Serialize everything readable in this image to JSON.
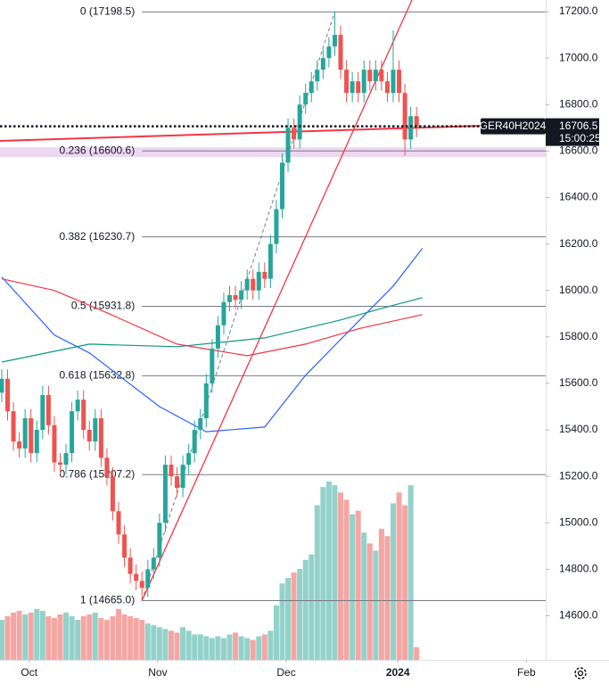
{
  "chart_data": {
    "type": "candlestick",
    "symbol": "GER40H2024",
    "countdown": "15:00:25",
    "open": [
      15560,
      15620,
      15480,
      15350,
      15320,
      15450,
      15300,
      15400,
      15550,
      15420,
      15260,
      15250,
      15300,
      15480,
      15530,
      15400,
      15350,
      15450,
      15280,
      15200,
      15050,
      14950,
      14850,
      14780,
      14750,
      14720,
      14800,
      14850,
      15000,
      15250,
      15200,
      15150,
      15250,
      15300,
      15400,
      15450,
      15600,
      15750,
      15850,
      15950,
      15980,
      15960,
      16000,
      16050,
      16000,
      16080,
      16050,
      16200,
      16350,
      16550,
      16700,
      16650,
      16800,
      16850,
      16900,
      16950,
      17000,
      17050,
      17100,
      16950,
      16850,
      16900,
      16850,
      16950,
      16900,
      16950,
      16900,
      16850,
      16950,
      16850,
      16650,
      16750
    ],
    "high": [
      15660,
      15660,
      15520,
      15390,
      15490,
      15490,
      15440,
      15590,
      15590,
      15460,
      15300,
      15340,
      15520,
      15570,
      15570,
      15440,
      15490,
      15490,
      15320,
      15240,
      15090,
      14990,
      14890,
      14820,
      14790,
      14840,
      14890,
      15040,
      15290,
      15290,
      15240,
      15290,
      15340,
      15440,
      15490,
      15640,
      15790,
      15890,
      15990,
      16020,
      16020,
      16040,
      16090,
      16090,
      16120,
      16120,
      16240,
      16390,
      16590,
      16740,
      16740,
      16840,
      16890,
      16940,
      16990,
      17040,
      17090,
      17198.5,
      17140,
      16990,
      16940,
      16940,
      16990,
      16990,
      16990,
      16990,
      16940,
      17120,
      16990,
      16890,
      16790,
      16790
    ],
    "low": [
      15520,
      15440,
      15310,
      15280,
      15280,
      15260,
      15260,
      15360,
      15380,
      15220,
      15210,
      15210,
      15260,
      15440,
      15360,
      15310,
      15310,
      15240,
      15160,
      15010,
      14910,
      14810,
      14740,
      14710,
      14665,
      14680,
      14760,
      14810,
      14960,
      15160,
      15110,
      15110,
      15210,
      15260,
      15360,
      15410,
      15560,
      15710,
      15810,
      15910,
      15920,
      15920,
      15960,
      15960,
      15960,
      16010,
      16010,
      16160,
      16310,
      16510,
      16610,
      16610,
      16760,
      16810,
      16860,
      16910,
      16960,
      17010,
      16910,
      16810,
      16810,
      16810,
      16810,
      16860,
      16860,
      16860,
      16810,
      16810,
      16810,
      16580,
      16610,
      16660
    ],
    "close": [
      15620,
      15480,
      15350,
      15320,
      15450,
      15300,
      15400,
      15550,
      15420,
      15260,
      15250,
      15300,
      15480,
      15530,
      15400,
      15350,
      15450,
      15280,
      15200,
      15050,
      14950,
      14850,
      14780,
      14750,
      14720,
      14800,
      14850,
      15000,
      15250,
      15200,
      15150,
      15250,
      15300,
      15400,
      15450,
      15600,
      15750,
      15850,
      15950,
      15980,
      15960,
      16000,
      16050,
      16000,
      16080,
      16050,
      16200,
      16350,
      16550,
      16700,
      16650,
      16800,
      16850,
      16900,
      16950,
      17000,
      17050,
      17100,
      16950,
      16850,
      16900,
      16850,
      16950,
      16900,
      16950,
      16900,
      16850,
      16950,
      16850,
      16650,
      16750,
      16706.5
    ],
    "volume": [
      22,
      24,
      26,
      27,
      25,
      26,
      28,
      27,
      24,
      23,
      25,
      26,
      24,
      22,
      24,
      25,
      26,
      23,
      22,
      24,
      28,
      25,
      24,
      23,
      22,
      20,
      19,
      18,
      17,
      16,
      15,
      18,
      16,
      14,
      14,
      13,
      12,
      13,
      12,
      14,
      15,
      13,
      12,
      11,
      13,
      14,
      16,
      30,
      42,
      45,
      48,
      50,
      55,
      58,
      85,
      95,
      98,
      96,
      92,
      88,
      80,
      82,
      70,
      64,
      60,
      72,
      68,
      86,
      92,
      85,
      96,
      7
    ],
    "up_color": "#26a69a",
    "down_color": "#ef5350",
    "volume_up_color": "#93d2ca",
    "volume_down_color": "#f5a6a3",
    "moving_averages": [
      {
        "color": "#2962ff",
        "x": [
          0,
          9,
          15,
          27,
          35,
          45,
          52,
          61,
          67,
          72
        ],
        "values": [
          16058,
          15808,
          15731,
          15500,
          15392,
          15412,
          15635,
          15866,
          16019,
          16181
        ]
      },
      {
        "color": "#089981",
        "x": [
          0,
          15,
          30,
          45,
          58,
          65,
          72
        ],
        "values": [
          15692,
          15769,
          15758,
          15796,
          15873,
          15923,
          15969
        ]
      },
      {
        "color": "#f23645",
        "x": [
          0,
          9,
          18,
          30,
          42,
          52,
          61,
          72
        ],
        "values": [
          16050,
          16000,
          15904,
          15769,
          15719,
          15769,
          15835,
          15896
        ]
      }
    ],
    "fib_levels": [
      {
        "value": 17198.5,
        "label": "0 (17198.5)"
      },
      {
        "value": 16600.6,
        "label": "0.236 (16600.6)"
      },
      {
        "value": 16230.7,
        "label": "0.382 (16230.7)"
      },
      {
        "value": 15931.8,
        "label": "0.5 (15931.8)"
      },
      {
        "value": 15632.8,
        "label": "0.618 (15632.8)"
      },
      {
        "value": 15207.2,
        "label": "0.786 (15207.2)"
      },
      {
        "value": 14665.0,
        "label": "1 (14665.0)"
      }
    ],
    "fib_start": 24,
    "xlim": [
      -0.3,
      93.1
    ],
    "ylim": [
      14410,
      17250
    ],
    "yticks": [
      {
        "value": 14600,
        "label": "14600.0"
      },
      {
        "value": 14800,
        "label": "14800.0"
      },
      {
        "value": 15000,
        "label": "15000.0"
      },
      {
        "value": 15200,
        "label": "15200.0"
      },
      {
        "value": 15400,
        "label": "15400.0"
      },
      {
        "value": 15600,
        "label": "15600.0"
      },
      {
        "value": 15800,
        "label": "15800.0"
      },
      {
        "value": 16000,
        "label": "16000.0"
      },
      {
        "value": 16200,
        "label": "16200.0"
      },
      {
        "value": 16400,
        "label": "16400.0"
      },
      {
        "value": 16600,
        "label": "16600.0"
      },
      {
        "value": 16800,
        "label": "16800.0"
      },
      {
        "value": 17000,
        "label": "17000.0"
      },
      {
        "value": 17200,
        "label": "17200.0"
      }
    ],
    "xticks": [
      {
        "value": 4.7,
        "label": "Oct"
      },
      {
        "value": 26.7,
        "label": "Nov"
      },
      {
        "value": 48.7,
        "label": "Dec"
      },
      {
        "value": 67.8,
        "label": "2024"
      },
      {
        "value": 89.8,
        "label": "Feb"
      }
    ]
  }
}
